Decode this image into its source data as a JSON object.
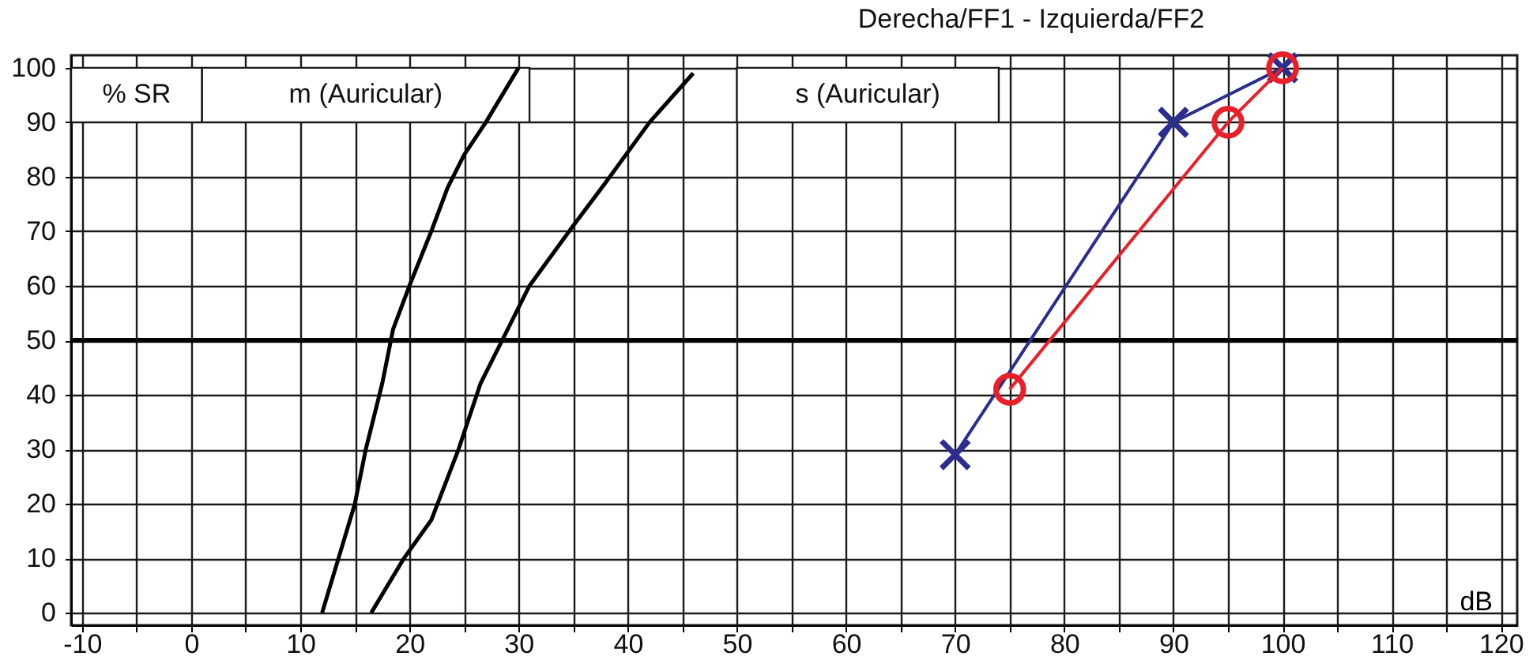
{
  "chart_data": {
    "type": "line",
    "title": "Derecha/FF1 - Izquierda/FF2",
    "xlabel": "dB",
    "annotations": [
      "% SR",
      "m (Auricular)",
      "s (Auricular)"
    ],
    "xlim": [
      -11,
      121.5
    ],
    "ylim": [
      -2.3,
      102.3
    ],
    "xticks": [
      -10,
      {
        "value": -5,
        "label": null
      },
      0,
      {
        "value": 5,
        "label": null
      },
      10,
      {
        "value": 15,
        "label": null
      },
      20,
      {
        "value": 25,
        "label": null
      },
      30,
      {
        "value": 35,
        "label": null
      },
      40,
      {
        "value": 45,
        "label": null
      },
      50,
      {
        "value": 55,
        "label": null
      },
      60,
      {
        "value": 65,
        "label": null
      },
      70,
      {
        "value": 75,
        "label": null
      },
      80,
      {
        "value": 85,
        "label": null
      },
      90,
      {
        "value": 95,
        "label": null
      },
      100,
      {
        "value": 105,
        "label": null
      },
      110,
      {
        "value": 115,
        "label": null
      },
      120
    ],
    "yticks": [
      0,
      10,
      20,
      30,
      40,
      50,
      60,
      70,
      80,
      90,
      100
    ],
    "grid": true,
    "line_style": "solid",
    "ref_lines": [
      {
        "axis": "y",
        "value": 50,
        "color": "#000000"
      }
    ],
    "series": [
      {
        "color": "#000000",
        "marker": "none",
        "x": [
          12,
          13.5,
          15,
          16,
          17.5,
          18.5,
          20,
          22,
          23.5,
          25,
          27,
          30
        ],
        "values": [
          0,
          10,
          20,
          30,
          42,
          52,
          60,
          70,
          78,
          84,
          90,
          100
        ]
      },
      {
        "color": "#000000",
        "marker": "none",
        "x": [
          16.5,
          19.5,
          22,
          24.5,
          26.5,
          28.5,
          31,
          35,
          38,
          42,
          46
        ],
        "values": [
          0,
          10,
          17,
          30,
          42,
          50,
          60,
          71,
          79,
          90,
          99
        ]
      },
      {
        "color": "#2b2d8f",
        "marker": "cross",
        "x": [
          70,
          90,
          100
        ],
        "values": [
          29,
          90,
          100
        ]
      },
      {
        "color": "#e8202a",
        "marker": "circle",
        "x": [
          75,
          95,
          100
        ],
        "values": [
          41,
          90,
          100
        ]
      }
    ]
  }
}
